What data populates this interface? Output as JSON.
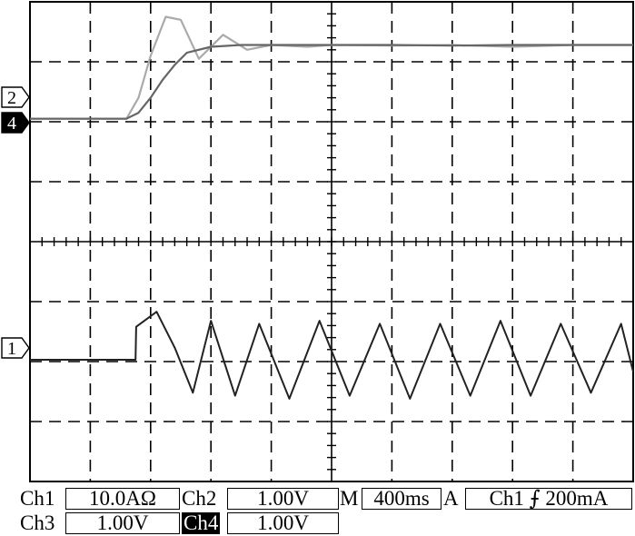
{
  "chart_data": [
    {
      "type": "line",
      "panel": "upper",
      "grid": true,
      "x_divisions": 10,
      "y_divisions_in_panel": 4,
      "channel_markers": [
        "2",
        "4"
      ],
      "series": [
        {
          "channel": "2",
          "color": "#aaaaaa",
          "x_div": [
            0,
            1.2,
            1.6,
            1.8,
            2.0,
            2.25,
            2.5,
            2.8,
            3.2,
            3.6,
            4.0,
            4.6,
            5.0,
            6,
            7,
            8,
            9,
            10
          ],
          "y_div": [
            1.95,
            1.95,
            1.95,
            1.6,
            0.9,
            0.25,
            0.3,
            0.95,
            0.55,
            0.8,
            0.72,
            0.75,
            0.72,
            0.73,
            0.72,
            0.75,
            0.72,
            0.72
          ]
        },
        {
          "channel": "4",
          "color": "#666666",
          "x_div": [
            0,
            1.6,
            1.8,
            2.0,
            2.2,
            2.4,
            2.6,
            3.0,
            3.5,
            4.0,
            5.0,
            6,
            7,
            8,
            9,
            10
          ],
          "y_div": [
            1.95,
            1.95,
            1.85,
            1.6,
            1.3,
            1.05,
            0.85,
            0.75,
            0.72,
            0.72,
            0.72,
            0.72,
            0.73,
            0.72,
            0.72,
            0.72
          ]
        }
      ]
    },
    {
      "type": "line",
      "panel": "lower",
      "grid": true,
      "channel_markers": [
        "1"
      ],
      "series": [
        {
          "channel": "1",
          "color": "#222222",
          "description_points": "step at ~1.75 div then sinusoid, ~1 div period",
          "x_div": [
            0,
            1.75,
            1.76,
            2.1,
            2.4,
            2.7,
            3.0,
            3.4,
            3.8,
            4.3,
            4.8,
            5.3,
            5.8,
            6.3,
            6.8,
            7.3,
            7.8,
            8.3,
            8.8,
            9.3,
            9.8,
            10
          ],
          "y_div": [
            0,
            0,
            0.55,
            0.8,
            0.2,
            -0.55,
            0.65,
            -0.6,
            0.6,
            -0.65,
            0.65,
            -0.6,
            0.6,
            -0.65,
            0.6,
            -0.6,
            0.65,
            -0.6,
            0.6,
            -0.55,
            0.6,
            -0.2
          ]
        }
      ]
    }
  ],
  "readout": {
    "ch1_label": "Ch1",
    "ch1_value": "10.0AΩ",
    "ch2_label": "Ch2",
    "ch2_value": "1.00V",
    "m_label": "M",
    "m_value": "400ms",
    "a_label": "A",
    "trigger_value": "Ch1 ⨍ 200mA",
    "ch3_label": "Ch3",
    "ch3_value": "1.00V",
    "ch4_label": "Ch4",
    "ch4_value": "1.00V"
  }
}
